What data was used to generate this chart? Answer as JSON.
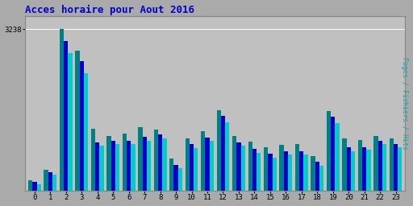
{
  "title": "Acces horaire pour Aout 2016",
  "ylabel": "Pages / Fichiers / Hits",
  "xlabel_categories": [
    0,
    1,
    2,
    3,
    4,
    5,
    6,
    7,
    8,
    9,
    10,
    11,
    12,
    13,
    14,
    15,
    16,
    17,
    18,
    19,
    20,
    21,
    22,
    23
  ],
  "pages": [
    220,
    420,
    3238,
    2800,
    1250,
    1100,
    1150,
    1280,
    1230,
    650,
    1050,
    1200,
    1620,
    1100,
    980,
    870,
    920,
    930,
    700,
    1600,
    1050,
    1020,
    1100,
    1050
  ],
  "fichiers": [
    180,
    370,
    3000,
    2600,
    970,
    1000,
    1000,
    1080,
    1130,
    520,
    930,
    1060,
    1500,
    970,
    840,
    740,
    800,
    800,
    580,
    1480,
    870,
    880,
    1000,
    940
  ],
  "hits": [
    140,
    320,
    2750,
    2350,
    900,
    930,
    930,
    1010,
    1050,
    460,
    860,
    1000,
    1380,
    900,
    760,
    660,
    730,
    730,
    510,
    1360,
    800,
    820,
    940,
    870
  ],
  "color_pages": "#008080",
  "color_fichiers": "#0000cc",
  "color_hits": "#00cccc",
  "bg_color": "#aaaaaa",
  "plot_bg_color": "#c0c0c0",
  "title_color": "#0000cc",
  "ylabel_color": "#00aaaa",
  "ylim": [
    0,
    3500
  ],
  "bar_width": 0.27,
  "figwidth": 5.12,
  "figheight": 2.56,
  "dpi": 100
}
